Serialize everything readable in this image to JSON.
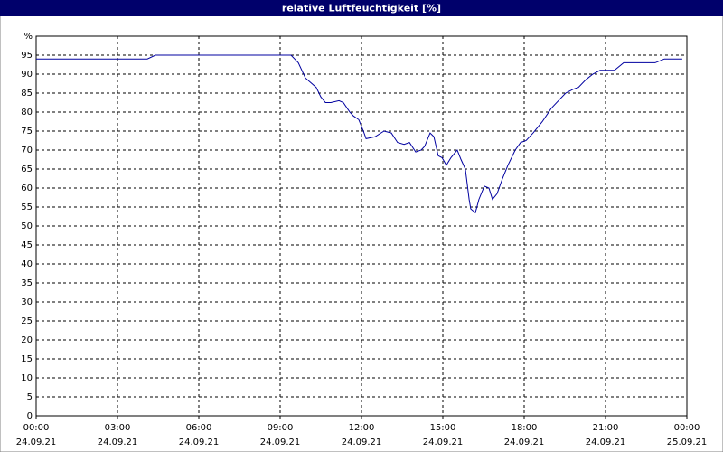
{
  "chart_data": {
    "type": "line",
    "title": "relative Luftfeuchtigkeit [%]",
    "x": [
      0,
      4.1,
      4.4,
      9.4,
      9.67,
      9.93,
      10.17,
      10.33,
      10.5,
      10.67,
      10.87,
      11.17,
      11.33,
      11.57,
      11.7,
      11.9,
      12.07,
      12.17,
      12.5,
      12.83,
      13.1,
      13.33,
      13.57,
      13.77,
      14.0,
      14.2,
      14.33,
      14.53,
      14.67,
      14.83,
      14.97,
      15.13,
      15.3,
      15.53,
      15.67,
      15.83,
      15.97,
      16.03,
      16.2,
      16.33,
      16.53,
      16.7,
      16.83,
      17.0,
      17.2,
      17.4,
      17.67,
      17.87,
      18.07,
      18.33,
      18.67,
      19.0,
      19.33,
      19.53,
      19.8,
      20.0,
      20.27,
      20.53,
      20.8,
      21.33,
      21.67,
      22.83,
      23.17,
      23.83
    ],
    "series": [
      {
        "name": "relative Luftfeuchtigkeit",
        "color": "#0000a0",
        "values": [
          94,
          94,
          95,
          95,
          93,
          89,
          87.5,
          86.5,
          84,
          82.5,
          82.5,
          83,
          82.5,
          80,
          79,
          78,
          75,
          73,
          73.5,
          75,
          74.5,
          72,
          71.5,
          72,
          69.5,
          70,
          71,
          74.5,
          73.5,
          68.5,
          68,
          66,
          68,
          70,
          67.5,
          65,
          57,
          54.5,
          53.5,
          57,
          60.5,
          60,
          57,
          58.5,
          62.5,
          66,
          70,
          72,
          72.5,
          74.5,
          77.5,
          81,
          83.5,
          85,
          86,
          86.5,
          88.5,
          90,
          91,
          91,
          93,
          93,
          94,
          94
        ]
      }
    ],
    "xlim": [
      0,
      24
    ],
    "xticks": [
      {
        "value": 0,
        "label": "00:00"
      },
      {
        "value": 3,
        "label": "03:00"
      },
      {
        "value": 6,
        "label": "06:00"
      },
      {
        "value": 9,
        "label": "09:00"
      },
      {
        "value": 12,
        "label": "12:00"
      },
      {
        "value": 15,
        "label": "15:00"
      },
      {
        "value": 18,
        "label": "18:00"
      },
      {
        "value": 21,
        "label": "21:00"
      },
      {
        "value": 24,
        "label": "00:00"
      }
    ],
    "xtick_dates": [
      "24.09.21",
      "24.09.21",
      "24.09.21",
      "24.09.21",
      "24.09.21",
      "24.09.21",
      "24.09.21",
      "24.09.21",
      "25.09.21"
    ],
    "ylim": [
      0,
      100
    ],
    "yticks": [
      0,
      5,
      10,
      15,
      20,
      25,
      30,
      35,
      40,
      45,
      50,
      55,
      60,
      65,
      70,
      75,
      80,
      85,
      90,
      95,
      {
        "value": 100,
        "label": "%"
      }
    ],
    "grid": true
  }
}
